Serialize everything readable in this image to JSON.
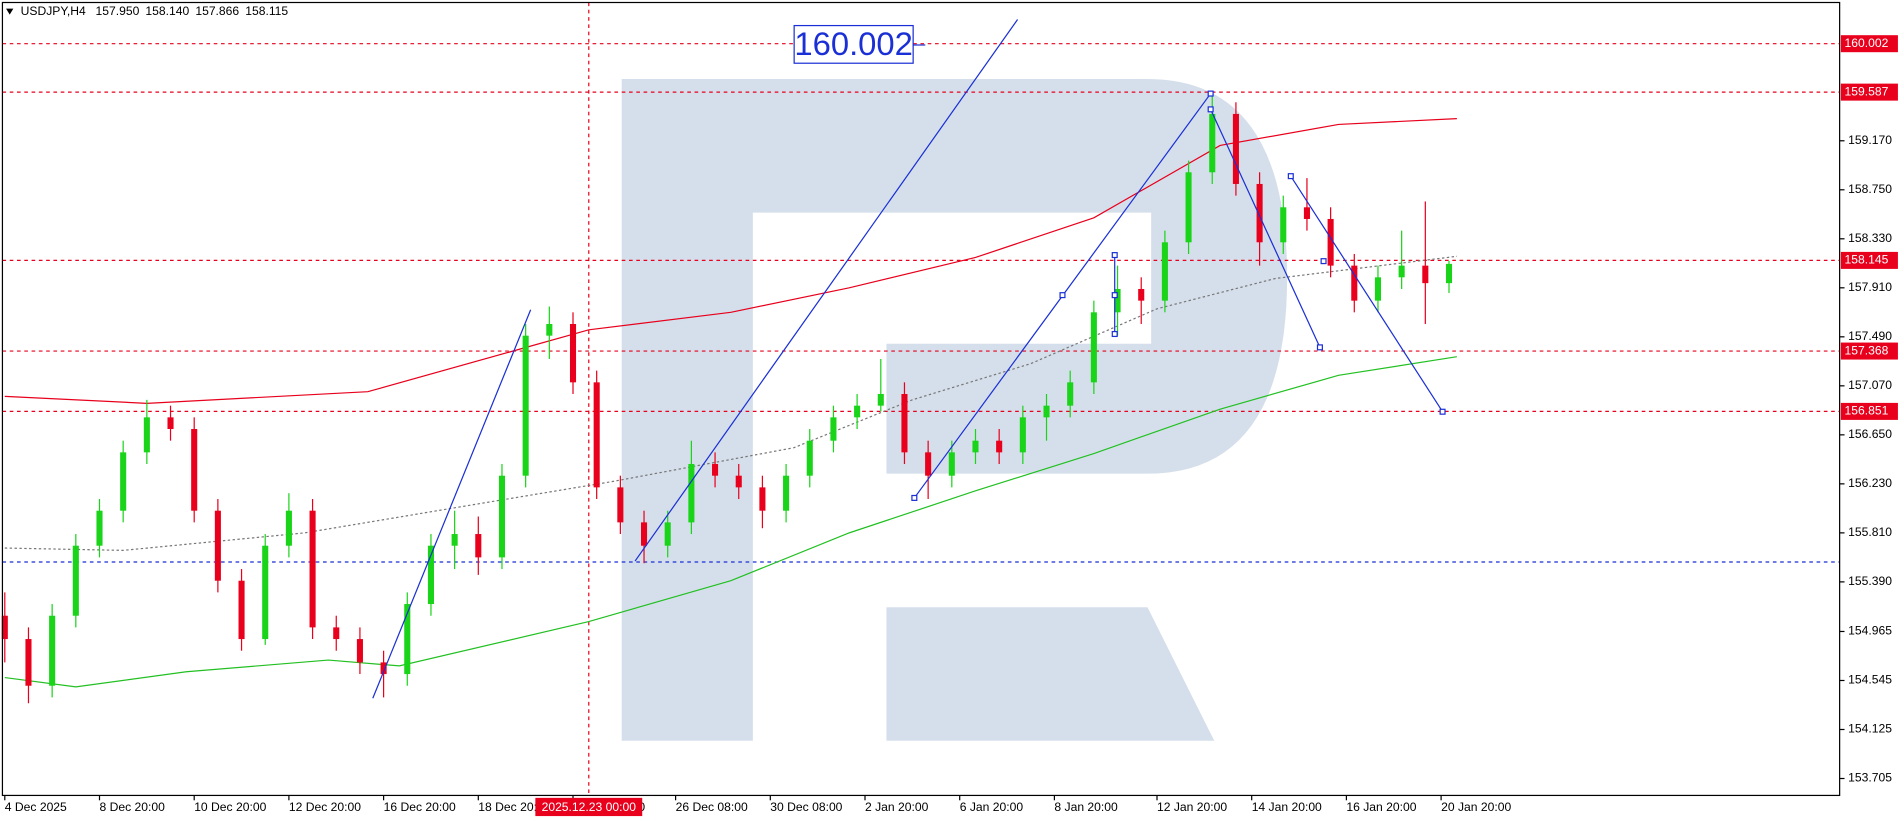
{
  "chart_data": {
    "type": "candlestick",
    "header": [
      "USDJPY,H4",
      "157.950",
      "158.140",
      "157.866",
      "158.115"
    ],
    "xlim": [
      -0.3,
      232.5
    ],
    "ylim": [
      153.56,
      160.355
    ],
    "yticks": [
      {
        "value": 159.17,
        "label": "159.170"
      },
      {
        "value": 158.75,
        "label": "158.750"
      },
      {
        "value": 158.33,
        "label": "158.330"
      },
      {
        "value": 157.91,
        "label": "157.910"
      },
      {
        "value": 157.49,
        "label": "157.490"
      },
      {
        "value": 157.07,
        "label": "157.070"
      },
      {
        "value": 156.65,
        "label": "156.650"
      },
      {
        "value": 156.23,
        "label": "156.230"
      },
      {
        "value": 155.81,
        "label": "155.810"
      },
      {
        "value": 155.39,
        "label": "155.390"
      },
      154.965,
      154.545,
      154.125,
      153.705
    ],
    "xticks": [
      {
        "value": 0,
        "label": "4 Dec 2025"
      },
      {
        "value": 12,
        "label": "8 Dec 20:00"
      },
      {
        "value": 24,
        "label": "10 Dec 20:00"
      },
      {
        "value": 36,
        "label": "12 Dec 20:00"
      },
      {
        "value": 48,
        "label": "16 Dec 20:00"
      },
      {
        "value": 60,
        "label": "18 Dec 20:00"
      },
      {
        "value": 72,
        "label": "22 Dec 20:00"
      },
      {
        "value": 85,
        "label": "26 Dec 08:00"
      },
      {
        "value": 97,
        "label": "30 Dec 08:00"
      },
      {
        "value": 109,
        "label": "2 Jan 20:00"
      },
      {
        "value": 121,
        "label": "6 Jan 20:00"
      },
      {
        "value": 133,
        "label": "8 Jan 20:00"
      },
      {
        "value": 146,
        "label": "12 Jan 20:00"
      },
      {
        "value": 158,
        "label": "14 Jan 20:00"
      },
      {
        "value": 170,
        "label": "16 Jan 20:00"
      },
      {
        "value": 182,
        "label": "20 Jan 20:00"
      }
    ],
    "crosshair": {
      "x": 74,
      "label": "2025.12.23 00:00"
    },
    "levels": [
      160.002,
      159.587,
      158.145,
      157.368,
      156.851
    ],
    "level_color": "#e8001c",
    "support": 155.56,
    "support_color": "#1a2fd6",
    "up_color": "#19d419",
    "down_color": "#e8001c",
    "candles": {
      "x": [
        0,
        3,
        6,
        9,
        12,
        15,
        18,
        21,
        24,
        27,
        30,
        33,
        36,
        39,
        42,
        45,
        48,
        51,
        54,
        57,
        60,
        63,
        66,
        69,
        72,
        75,
        78,
        81,
        84,
        87,
        90,
        93,
        96,
        99,
        102,
        105,
        108,
        111,
        114,
        117,
        120,
        123,
        126,
        129,
        132,
        135,
        138,
        141,
        144,
        147,
        150,
        153,
        156,
        159,
        162,
        165,
        168,
        171,
        174,
        177,
        180,
        183
      ],
      "open": [
        155.1,
        154.9,
        154.5,
        155.1,
        155.7,
        156.0,
        156.5,
        156.8,
        156.7,
        156.0,
        155.4,
        154.9,
        155.7,
        156.0,
        155.0,
        154.9,
        154.7,
        154.6,
        155.2,
        155.7,
        155.8,
        155.6,
        156.3,
        157.5,
        157.6,
        157.1,
        156.2,
        155.9,
        155.7,
        155.9,
        156.4,
        156.3,
        156.2,
        156.0,
        156.3,
        156.6,
        156.8,
        156.9,
        157.0,
        156.5,
        156.3,
        156.5,
        156.6,
        156.5,
        156.8,
        156.9,
        157.1,
        157.7,
        157.9,
        157.8,
        158.3,
        158.9,
        159.4,
        158.8,
        158.3,
        158.6,
        158.5,
        158.1,
        157.8,
        158.0,
        158.1,
        157.95
      ],
      "high": [
        155.3,
        155.0,
        155.2,
        155.8,
        156.1,
        156.6,
        156.95,
        156.9,
        156.8,
        156.1,
        155.5,
        155.8,
        156.15,
        156.1,
        155.1,
        155.0,
        154.8,
        155.3,
        155.8,
        156.0,
        155.95,
        156.4,
        157.6,
        157.75,
        157.7,
        157.2,
        156.3,
        156.0,
        156.0,
        156.6,
        156.5,
        156.4,
        156.3,
        156.4,
        156.7,
        156.9,
        157.0,
        157.3,
        157.1,
        156.6,
        156.6,
        156.7,
        156.7,
        156.9,
        157.0,
        157.2,
        157.8,
        158.1,
        158.0,
        158.4,
        159.0,
        159.55,
        159.5,
        158.9,
        158.7,
        158.85,
        158.6,
        158.2,
        158.1,
        158.4,
        158.65,
        158.14
      ],
      "low": [
        154.7,
        154.35,
        154.4,
        155.0,
        155.6,
        155.9,
        156.4,
        156.6,
        155.9,
        155.3,
        154.8,
        154.85,
        155.6,
        154.9,
        154.8,
        154.6,
        154.4,
        154.5,
        155.1,
        155.5,
        155.45,
        155.5,
        156.2,
        157.3,
        157.0,
        156.1,
        155.8,
        155.55,
        155.6,
        155.8,
        156.2,
        156.1,
        155.85,
        155.9,
        156.2,
        156.5,
        156.7,
        156.85,
        156.4,
        156.1,
        156.2,
        156.4,
        156.4,
        156.4,
        156.6,
        156.8,
        157.0,
        157.5,
        157.6,
        157.7,
        158.2,
        158.8,
        158.7,
        158.1,
        158.2,
        158.4,
        158.0,
        157.7,
        157.7,
        157.9,
        157.6,
        157.866
      ],
      "close": [
        154.9,
        154.5,
        155.1,
        155.7,
        156.0,
        156.5,
        156.8,
        156.7,
        156.0,
        155.4,
        154.9,
        155.7,
        156.0,
        155.0,
        154.9,
        154.7,
        154.6,
        155.2,
        155.7,
        155.8,
        155.6,
        156.3,
        157.5,
        157.6,
        157.1,
        156.2,
        155.9,
        155.7,
        155.9,
        156.4,
        156.3,
        156.2,
        156.0,
        156.3,
        156.6,
        156.8,
        156.9,
        157.0,
        156.5,
        156.3,
        156.5,
        156.6,
        156.5,
        156.8,
        156.9,
        157.1,
        157.7,
        157.9,
        157.8,
        158.3,
        158.9,
        159.4,
        158.8,
        158.3,
        158.6,
        158.5,
        158.1,
        157.8,
        158.0,
        158.1,
        157.95,
        158.115
      ]
    },
    "series": [
      {
        "color": "#e8001c",
        "dash": false,
        "x": [
          0,
          18,
          46,
          74,
          92,
          107,
          123,
          138,
          154,
          169,
          184
        ],
        "values": [
          156.98,
          156.92,
          157.02,
          157.55,
          157.7,
          157.91,
          158.17,
          158.51,
          159.13,
          159.31,
          159.36
        ]
      },
      {
        "color": "#22c022",
        "dash": false,
        "x": [
          0,
          9,
          23,
          41,
          50,
          74,
          92,
          107,
          123,
          138,
          154,
          169,
          184
        ],
        "values": [
          154.57,
          154.49,
          154.62,
          154.72,
          154.67,
          155.05,
          155.4,
          155.81,
          156.17,
          156.49,
          156.87,
          157.16,
          157.32
        ]
      },
      {
        "color": "#777777",
        "dash": true,
        "x": [
          0,
          15,
          38,
          61,
          77,
          100,
          115,
          130,
          146,
          161,
          184
        ],
        "values": [
          155.68,
          155.66,
          155.81,
          156.07,
          156.25,
          156.54,
          156.95,
          157.26,
          157.73,
          157.99,
          158.18
        ]
      }
    ]
  }
}
